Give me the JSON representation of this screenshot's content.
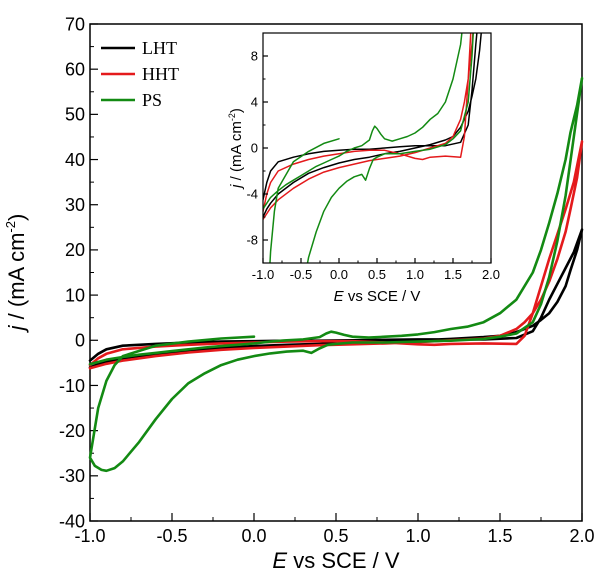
{
  "chart_data": [
    {
      "type": "line",
      "xlabel": "E vs SCE / V",
      "ylabel": "j / (mA cm-2)",
      "xlim": [
        -1.0,
        2.0
      ],
      "ylim": [
        -40,
        70
      ],
      "xticks": [
        "-1.0",
        "-0.5",
        "0.0",
        "0.5",
        "1.0",
        "1.5",
        "2.0"
      ],
      "yticks": [
        "-40",
        "-30",
        "-20",
        "-10",
        "0",
        "10",
        "20",
        "30",
        "40",
        "50",
        "60",
        "70"
      ],
      "grid": false,
      "legend_position": "top-left",
      "series": [
        {
          "name": "LHT",
          "color": "#000000",
          "x": [
            -1.0,
            -0.95,
            -0.9,
            -0.8,
            -0.6,
            -0.4,
            -0.2,
            0.0,
            0.2,
            0.4,
            0.6,
            0.8,
            1.0,
            1.2,
            1.4,
            1.6,
            1.7,
            1.75,
            1.8,
            1.85,
            1.9,
            1.95,
            2.0,
            1.97,
            1.93,
            1.9,
            1.85,
            1.8,
            1.75,
            1.7,
            1.6,
            1.5,
            1.4,
            1.2,
            1.0,
            0.8,
            0.6,
            0.4,
            0.2,
            0.0,
            -0.2,
            -0.4,
            -0.6,
            -0.8,
            -0.9,
            -0.95,
            -1.0
          ],
          "y": [
            -4.5,
            -3.0,
            -2.0,
            -1.2,
            -0.8,
            -0.5,
            -0.3,
            -0.2,
            -0.1,
            -0.1,
            0.0,
            0.1,
            0.2,
            0.2,
            0.2,
            0.5,
            2.0,
            5.0,
            9.0,
            12.5,
            16.0,
            19.5,
            24.5,
            20.0,
            15.5,
            12.0,
            8.5,
            6.0,
            4.5,
            3.2,
            1.8,
            1.0,
            0.7,
            0.3,
            0.0,
            -0.3,
            -0.5,
            -0.8,
            -1.0,
            -1.3,
            -1.7,
            -2.2,
            -3.0,
            -4.0,
            -4.8,
            -5.3,
            -6.0
          ]
        },
        {
          "name": "HHT",
          "color": "#e41a1c",
          "x": [
            -1.0,
            -0.95,
            -0.9,
            -0.8,
            -0.6,
            -0.4,
            -0.2,
            0.0,
            0.2,
            0.4,
            0.6,
            0.8,
            1.0,
            1.1,
            1.2,
            1.4,
            1.6,
            1.65,
            1.7,
            1.75,
            1.8,
            1.85,
            1.9,
            1.95,
            2.0,
            1.97,
            1.93,
            1.9,
            1.85,
            1.8,
            1.75,
            1.7,
            1.65,
            1.6,
            1.5,
            1.4,
            1.2,
            1.0,
            0.8,
            0.6,
            0.4,
            0.2,
            0.0,
            -0.2,
            -0.4,
            -0.6,
            -0.8,
            -0.9,
            -0.95,
            -1.0
          ],
          "y": [
            -5.5,
            -4.0,
            -3.0,
            -2.0,
            -1.4,
            -1.0,
            -0.7,
            -0.5,
            -0.3,
            -0.2,
            -0.2,
            -0.5,
            -0.9,
            -1.0,
            -0.8,
            -0.7,
            -0.8,
            1.0,
            6.0,
            12.0,
            18.0,
            23.5,
            29.0,
            35.0,
            44.0,
            36.0,
            29.0,
            24.0,
            18.0,
            13.0,
            9.0,
            6.0,
            4.0,
            2.5,
            1.0,
            0.4,
            0.0,
            -0.4,
            -0.7,
            -0.9,
            -1.1,
            -1.4,
            -1.7,
            -2.1,
            -2.7,
            -3.5,
            -4.5,
            -5.2,
            -5.7,
            -6.2
          ]
        },
        {
          "name": "PS",
          "color": "#138a13",
          "x": [
            0.0,
            -0.2,
            -0.4,
            -0.6,
            -0.8,
            -0.85,
            -0.9,
            -0.95,
            -1.0,
            -0.97,
            -0.93,
            -0.9,
            -0.85,
            -0.8,
            -0.7,
            -0.6,
            -0.5,
            -0.4,
            -0.3,
            -0.2,
            -0.1,
            0.0,
            0.1,
            0.2,
            0.3,
            0.35,
            0.4,
            0.45,
            0.5,
            0.6,
            0.8,
            1.0,
            1.2,
            1.4,
            1.5,
            1.6,
            1.7,
            1.75,
            1.8,
            1.85,
            1.9,
            1.95,
            2.0,
            1.97,
            1.93,
            1.9,
            1.85,
            1.8,
            1.75,
            1.7,
            1.6,
            1.5,
            1.4,
            1.3,
            1.2,
            1.1,
            1.0,
            0.9,
            0.8,
            0.7,
            0.6,
            0.55,
            0.5,
            0.47,
            0.44,
            0.4,
            0.3,
            0.2,
            0.1,
            0.0,
            -0.1,
            -0.2,
            -0.3,
            -0.4,
            -0.5,
            -0.6,
            -0.7,
            -0.8,
            -0.9,
            -0.95,
            -1.0
          ],
          "y": [
            0.8,
            0.4,
            -0.3,
            -1.2,
            -3.5,
            -5.5,
            -9.0,
            -15.0,
            -26.0,
            -27.8,
            -28.7,
            -28.9,
            -28.3,
            -26.8,
            -22.5,
            -17.5,
            -13.0,
            -9.5,
            -7.3,
            -5.5,
            -4.3,
            -3.5,
            -2.9,
            -2.5,
            -2.3,
            -2.8,
            -1.8,
            -1.0,
            -0.8,
            -0.5,
            -0.5,
            -0.3,
            -0.1,
            0.3,
            0.8,
            1.5,
            4.0,
            8.0,
            14.0,
            22.0,
            32.0,
            45.0,
            58.0,
            52.0,
            46.0,
            40.0,
            32.5,
            26.0,
            20.0,
            15.0,
            9.0,
            6.0,
            4.0,
            3.0,
            2.5,
            1.8,
            1.3,
            1.0,
            0.8,
            0.6,
            0.8,
            1.2,
            1.7,
            1.9,
            1.5,
            0.7,
            0.2,
            0.0,
            -0.3,
            -0.7,
            -1.0,
            -1.3,
            -1.6,
            -2.0,
            -2.4,
            -2.8,
            -3.2,
            -3.7,
            -4.3,
            -4.8,
            -5.3
          ]
        }
      ]
    },
    {
      "type": "line",
      "xlabel": "E vs SCE / V",
      "ylabel": "j / (mA cm-2)",
      "xlim": [
        -1.0,
        2.0
      ],
      "ylim": [
        -10,
        10
      ],
      "xticks": [
        "-1.0",
        "-0.5",
        "0.0",
        "0.5",
        "1.0",
        "1.5",
        "2.0"
      ],
      "yticks": [
        "-8",
        "-4",
        "0",
        "4",
        "8"
      ],
      "grid": false,
      "series_ref": "same series as main plot, zoomed view"
    }
  ],
  "labels": {
    "main_xlabel_italic": "E",
    "main_xlabel_rest": " vs SCE / V",
    "main_ylabel_italic": "j",
    "main_ylabel_rest": " / (mA cm",
    "main_ylabel_exp": "-2",
    "main_ylabel_close": ")",
    "inset_xlabel_italic": "E",
    "inset_xlabel_rest": " vs SCE / V",
    "inset_ylabel_italic": "j",
    "inset_ylabel_rest": " / (mA cm",
    "inset_ylabel_exp": "-2",
    "inset_ylabel_close": ")"
  },
  "legend": [
    {
      "name": "LHT",
      "color": "#000000"
    },
    {
      "name": "HHT",
      "color": "#e41a1c"
    },
    {
      "name": "PS",
      "color": "#138a13"
    }
  ]
}
